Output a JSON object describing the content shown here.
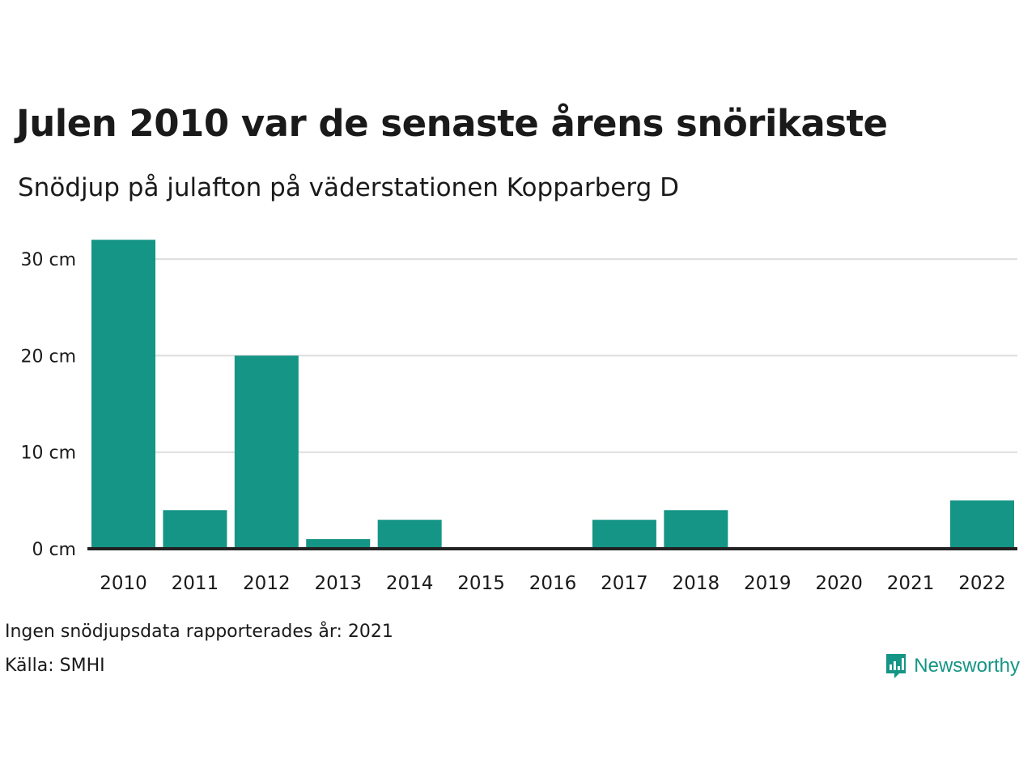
{
  "colors": {
    "bar": "#159585",
    "grid": "#dddddd",
    "baseline": "#222222",
    "brand": "#159585"
  },
  "chart_data": {
    "type": "bar",
    "title": "Julen 2010 var de senaste årens snörikaste",
    "subtitle": "Snödjup på julafton på väderstationen Kopparberg D",
    "categories": [
      "2010",
      "2011",
      "2012",
      "2013",
      "2014",
      "2015",
      "2016",
      "2017",
      "2018",
      "2019",
      "2020",
      "2021",
      "2022"
    ],
    "values": [
      32,
      4,
      20,
      1,
      3,
      0,
      0,
      3,
      4,
      0,
      0,
      0,
      5
    ],
    "unit": "cm",
    "ylim": [
      0,
      33
    ],
    "yticks": [
      0,
      10,
      20,
      30
    ],
    "ytick_labels": [
      "0 cm",
      "10 cm",
      "20 cm",
      "30 cm"
    ],
    "grid": true,
    "legend": "none"
  },
  "footer": {
    "note": "Ingen snödjupsdata rapporterades år: 2021",
    "source": "Källa: SMHI"
  },
  "brand": {
    "name": "Newsworthy",
    "icon": "bar-chart-speech-bubble-icon"
  }
}
